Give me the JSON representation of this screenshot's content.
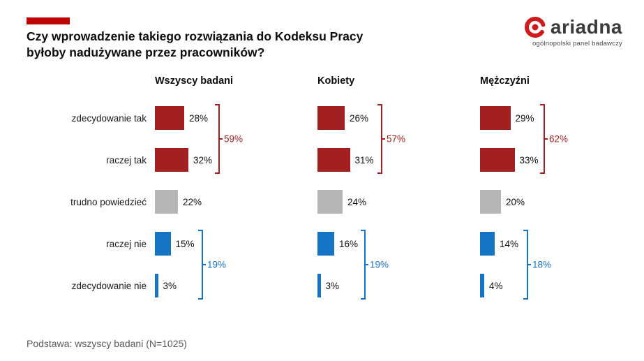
{
  "header": {
    "title_line1": "Czy wprowadzenie takiego rozwiązania do Kodeksu Pracy",
    "title_line2": "byłoby nadużywane przez pracowników?",
    "accent_color": "#c00000"
  },
  "logo": {
    "name": "ariadna",
    "subtitle": "ogólnopolski panel badawczy"
  },
  "footer": {
    "text": "Podstawa: wszyscy badani (N=1025)"
  },
  "chart_data": {
    "type": "bar",
    "orientation": "horizontal",
    "title": "Czy wprowadzenie takiego rozwiązania do Kodeksu Pracy byłoby nadużywane przez pracowników?",
    "categories": [
      "zdecydowanie tak",
      "raczej tak",
      "trudno powiedzieć",
      "raczej nie",
      "zdecydowanie nie"
    ],
    "series": [
      {
        "name": "Wszyscy badani",
        "values": [
          28,
          32,
          22,
          15,
          3
        ],
        "yes_total": 59,
        "no_total": 19
      },
      {
        "name": "Kobiety",
        "values": [
          26,
          31,
          24,
          16,
          3
        ],
        "yes_total": 57,
        "no_total": 19
      },
      {
        "name": "Mężczyźni",
        "values": [
          29,
          33,
          20,
          14,
          4
        ],
        "yes_total": 62,
        "no_total": 18
      }
    ],
    "bar_colors_by_row": [
      "yes",
      "yes",
      "neutral",
      "no",
      "no"
    ],
    "colors": {
      "yes": "#a32020",
      "neutral": "#b6b6b6",
      "no": "#1574c4",
      "yes_bracket": "#a32020",
      "no_bracket": "#1574c4"
    },
    "value_suffix": "%",
    "xlim": [
      0,
      100
    ],
    "grid": false,
    "legend": "none",
    "base_note": "Podstawa: wszyscy badani (N=1025)"
  }
}
